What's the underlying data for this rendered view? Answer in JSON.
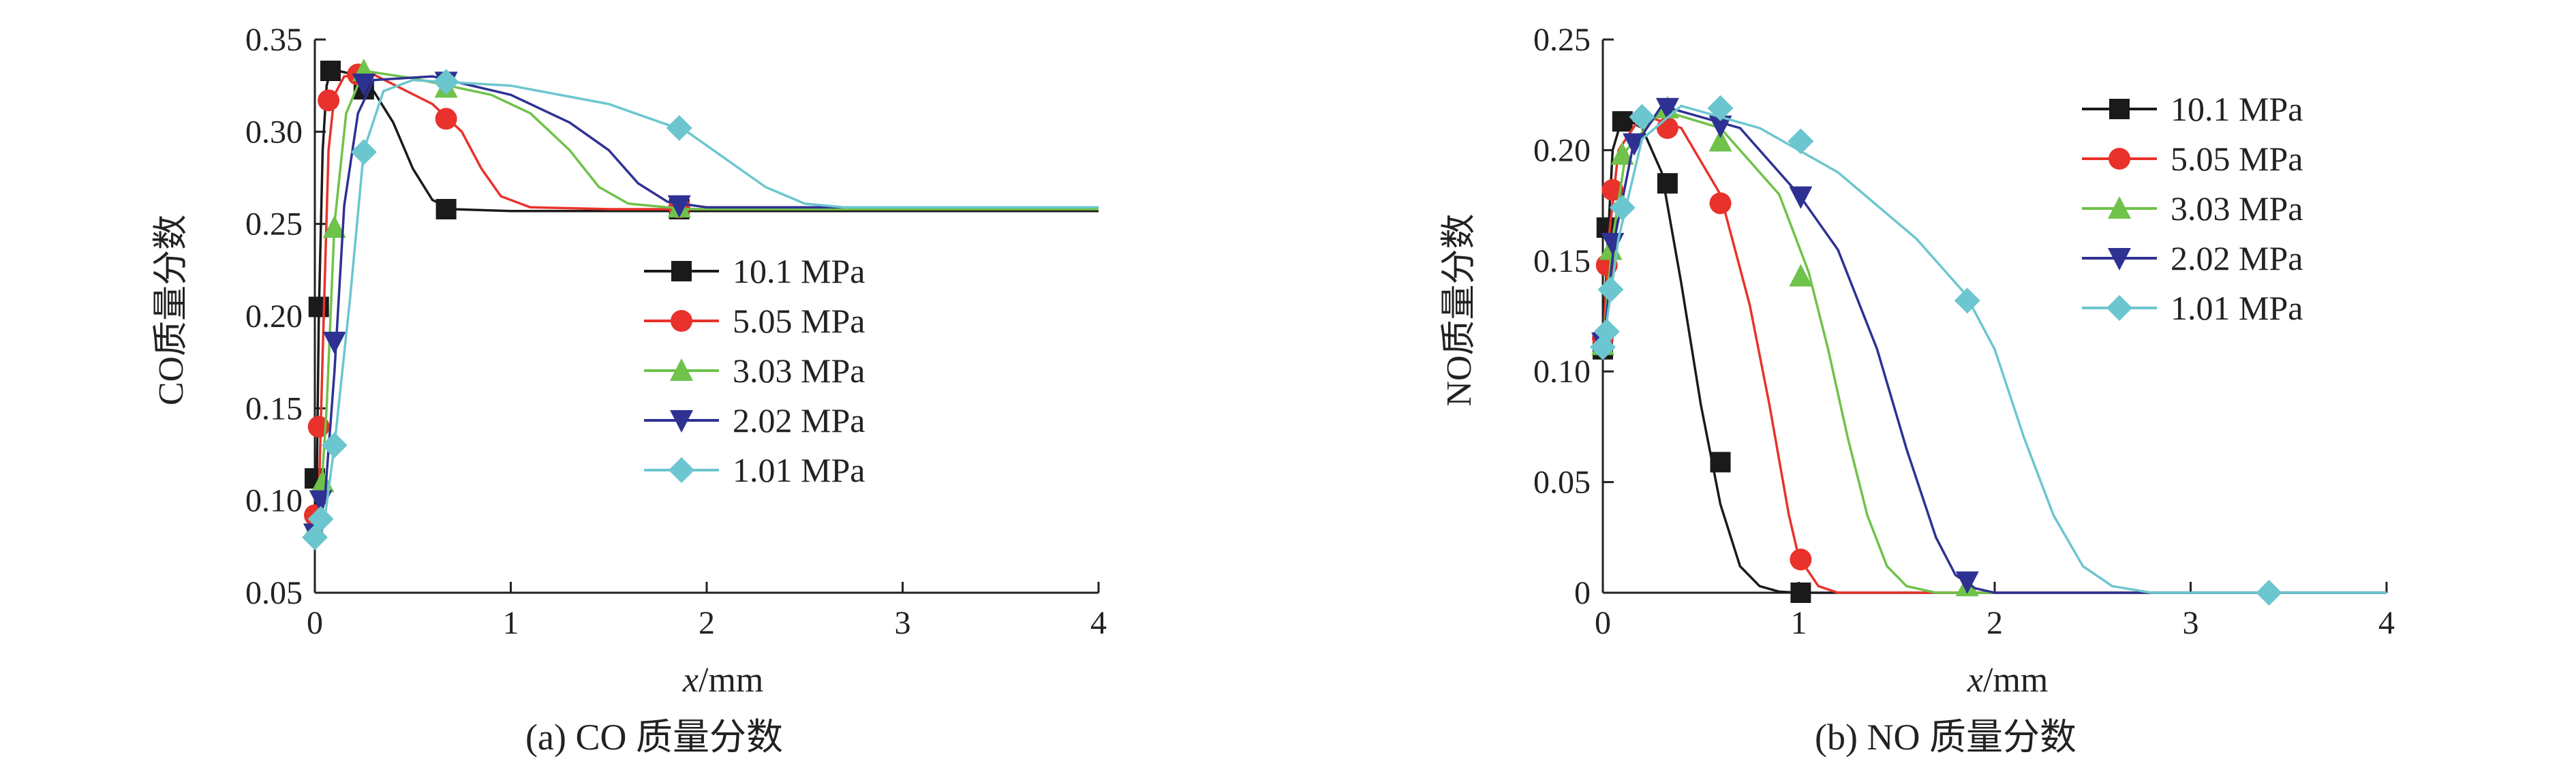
{
  "colors": {
    "10.1 MPa": "#1a1a1a",
    "5.05 MPa": "#e8322b",
    "3.03 MPa": "#6fc24a",
    "2.02 MPa": "#2e3192",
    "1.01 MPa": "#6cc6cf"
  },
  "markers": {
    "10.1 MPa": "square",
    "5.05 MPa": "circle",
    "3.03 MPa": "triangle-up",
    "2.02 MPa": "triangle-down",
    "1.01 MPa": "diamond"
  },
  "chart_data": [
    {
      "type": "line",
      "caption": "(a) CO 质量分数",
      "xlabel_var": "x",
      "xlabel_unit": "/mm",
      "ylabel": "CO质量分数",
      "xlim": [
        0,
        4
      ],
      "ylim": [
        0.05,
        0.35
      ],
      "xticks": [
        "0",
        "1",
        "2",
        "3",
        "4"
      ],
      "yticks": [
        "0.05",
        "0.10",
        "0.15",
        "0.20",
        "0.25",
        "0.30",
        "0.35"
      ],
      "legend_position": "center-right",
      "series": [
        {
          "name": "10.1 MPa",
          "curve": [
            [
              0,
              0.08
            ],
            [
              0.01,
              0.11
            ],
            [
              0.02,
              0.2
            ],
            [
              0.04,
              0.29
            ],
            [
              0.06,
              0.325
            ],
            [
              0.08,
              0.333
            ],
            [
              0.12,
              0.333
            ],
            [
              0.2,
              0.331
            ],
            [
              0.3,
              0.322
            ],
            [
              0.4,
              0.305
            ],
            [
              0.5,
              0.28
            ],
            [
              0.6,
              0.263
            ],
            [
              0.7,
              0.258
            ],
            [
              1.0,
              0.257
            ],
            [
              4.0,
              0.257
            ]
          ],
          "markers": [
            [
              0,
              0.112
            ],
            [
              0.02,
              0.205
            ],
            [
              0.08,
              0.333
            ],
            [
              0.25,
              0.323
            ],
            [
              0.67,
              0.258
            ],
            [
              1.86,
              0.258
            ]
          ]
        },
        {
          "name": "5.05 MPa",
          "curve": [
            [
              0,
              0.08
            ],
            [
              0.02,
              0.1
            ],
            [
              0.04,
              0.18
            ],
            [
              0.07,
              0.29
            ],
            [
              0.1,
              0.32
            ],
            [
              0.15,
              0.33
            ],
            [
              0.3,
              0.331
            ],
            [
              0.6,
              0.315
            ],
            [
              0.75,
              0.3
            ],
            [
              0.85,
              0.28
            ],
            [
              0.95,
              0.265
            ],
            [
              1.1,
              0.259
            ],
            [
              1.5,
              0.258
            ],
            [
              4.0,
              0.258
            ]
          ],
          "markers": [
            [
              0,
              0.092
            ],
            [
              0.02,
              0.14
            ],
            [
              0.07,
              0.317
            ],
            [
              0.22,
              0.331
            ],
            [
              0.67,
              0.307
            ],
            [
              1.86,
              0.259
            ]
          ]
        },
        {
          "name": "3.03 MPa",
          "curve": [
            [
              0,
              0.08
            ],
            [
              0.03,
              0.1
            ],
            [
              0.06,
              0.15
            ],
            [
              0.1,
              0.25
            ],
            [
              0.16,
              0.31
            ],
            [
              0.25,
              0.333
            ],
            [
              0.5,
              0.329
            ],
            [
              0.9,
              0.32
            ],
            [
              1.1,
              0.31
            ],
            [
              1.3,
              0.29
            ],
            [
              1.45,
              0.27
            ],
            [
              1.6,
              0.261
            ],
            [
              1.9,
              0.258
            ],
            [
              4.0,
              0.258
            ]
          ],
          "markers": [
            [
              0,
              0.085
            ],
            [
              0.04,
              0.11
            ],
            [
              0.1,
              0.248
            ],
            [
              0.25,
              0.333
            ],
            [
              0.67,
              0.324
            ],
            [
              1.86,
              0.259
            ]
          ]
        },
        {
          "name": "2.02 MPa",
          "curve": [
            [
              0,
              0.08
            ],
            [
              0.05,
              0.1
            ],
            [
              0.1,
              0.17
            ],
            [
              0.15,
              0.26
            ],
            [
              0.22,
              0.31
            ],
            [
              0.3,
              0.328
            ],
            [
              0.6,
              0.33
            ],
            [
              1.0,
              0.32
            ],
            [
              1.3,
              0.305
            ],
            [
              1.5,
              0.29
            ],
            [
              1.65,
              0.272
            ],
            [
              1.8,
              0.262
            ],
            [
              2.0,
              0.259
            ],
            [
              4.0,
              0.259
            ]
          ],
          "markers": [
            [
              0,
              0.082
            ],
            [
              0.03,
              0.1
            ],
            [
              0.1,
              0.186
            ],
            [
              0.25,
              0.326
            ],
            [
              0.67,
              0.327
            ],
            [
              1.86,
              0.26
            ]
          ]
        },
        {
          "name": "1.01 MPa",
          "curve": [
            [
              0,
              0.08
            ],
            [
              0.05,
              0.09
            ],
            [
              0.1,
              0.13
            ],
            [
              0.18,
              0.21
            ],
            [
              0.25,
              0.29
            ],
            [
              0.35,
              0.322
            ],
            [
              0.5,
              0.328
            ],
            [
              1.0,
              0.325
            ],
            [
              1.5,
              0.315
            ],
            [
              1.9,
              0.3
            ],
            [
              2.1,
              0.285
            ],
            [
              2.3,
              0.27
            ],
            [
              2.5,
              0.261
            ],
            [
              2.7,
              0.259
            ],
            [
              4.0,
              0.259
            ]
          ],
          "markers": [
            [
              0,
              0.08
            ],
            [
              0.03,
              0.09
            ],
            [
              0.1,
              0.13
            ],
            [
              0.25,
              0.289
            ],
            [
              0.67,
              0.327
            ],
            [
              1.86,
              0.302
            ]
          ]
        }
      ]
    },
    {
      "type": "line",
      "caption": "(b) NO 质量分数",
      "xlabel_var": "x",
      "xlabel_unit": "/mm",
      "ylabel": "NO质量分数",
      "xlim": [
        0,
        4
      ],
      "ylim": [
        0,
        0.25
      ],
      "xticks": [
        "0",
        "1",
        "2",
        "3",
        "4"
      ],
      "yticks": [
        "0",
        "0.05",
        "0.10",
        "0.15",
        "0.20",
        "0.25"
      ],
      "legend_position": "top-right",
      "series": [
        {
          "name": "10.1 MPa",
          "curve": [
            [
              0,
              0.11
            ],
            [
              0.02,
              0.15
            ],
            [
              0.05,
              0.2
            ],
            [
              0.1,
              0.215
            ],
            [
              0.2,
              0.21
            ],
            [
              0.3,
              0.19
            ],
            [
              0.4,
              0.14
            ],
            [
              0.5,
              0.085
            ],
            [
              0.6,
              0.04
            ],
            [
              0.7,
              0.012
            ],
            [
              0.8,
              0.003
            ],
            [
              0.9,
              0.0005
            ],
            [
              1.0,
              0.0
            ],
            [
              4.0,
              0.0
            ]
          ],
          "markers": [
            [
              0,
              0.11
            ],
            [
              0.02,
              0.165
            ],
            [
              0.1,
              0.213
            ],
            [
              0.33,
              0.185
            ],
            [
              0.6,
              0.059
            ],
            [
              1.01,
              0.0
            ]
          ]
        },
        {
          "name": "5.05 MPa",
          "curve": [
            [
              0,
              0.11
            ],
            [
              0.03,
              0.16
            ],
            [
              0.08,
              0.2
            ],
            [
              0.2,
              0.216
            ],
            [
              0.4,
              0.21
            ],
            [
              0.6,
              0.18
            ],
            [
              0.75,
              0.13
            ],
            [
              0.85,
              0.085
            ],
            [
              0.95,
              0.035
            ],
            [
              1.0,
              0.016
            ],
            [
              1.1,
              0.003
            ],
            [
              1.2,
              0.0
            ],
            [
              4.0,
              0.0
            ]
          ],
          "markers": [
            [
              0,
              0.115
            ],
            [
              0.02,
              0.148
            ],
            [
              0.05,
              0.182
            ],
            [
              0.33,
              0.21
            ],
            [
              0.6,
              0.176
            ],
            [
              1.01,
              0.015
            ]
          ]
        },
        {
          "name": "3.03 MPa",
          "curve": [
            [
              0,
              0.11
            ],
            [
              0.05,
              0.16
            ],
            [
              0.12,
              0.2
            ],
            [
              0.3,
              0.218
            ],
            [
              0.6,
              0.21
            ],
            [
              0.9,
              0.18
            ],
            [
              1.05,
              0.145
            ],
            [
              1.15,
              0.11
            ],
            [
              1.25,
              0.07
            ],
            [
              1.35,
              0.035
            ],
            [
              1.45,
              0.012
            ],
            [
              1.55,
              0.003
            ],
            [
              1.7,
              0.0
            ],
            [
              4.0,
              0.0
            ]
          ],
          "markers": [
            [
              0,
              0.112
            ],
            [
              0.04,
              0.155
            ],
            [
              0.1,
              0.198
            ],
            [
              0.33,
              0.219
            ],
            [
              0.6,
              0.204
            ],
            [
              1.01,
              0.143
            ],
            [
              1.86,
              0.003
            ]
          ]
        },
        {
          "name": "2.02 MPa",
          "curve": [
            [
              0,
              0.11
            ],
            [
              0.06,
              0.16
            ],
            [
              0.15,
              0.2
            ],
            [
              0.3,
              0.22
            ],
            [
              0.7,
              0.21
            ],
            [
              1.0,
              0.18
            ],
            [
              1.2,
              0.155
            ],
            [
              1.4,
              0.11
            ],
            [
              1.55,
              0.065
            ],
            [
              1.7,
              0.025
            ],
            [
              1.8,
              0.008
            ],
            [
              1.9,
              0.002
            ],
            [
              2.0,
              0.0
            ],
            [
              4.0,
              0.0
            ]
          ],
          "markers": [
            [
              0,
              0.113
            ],
            [
              0.05,
              0.158
            ],
            [
              0.16,
              0.203
            ],
            [
              0.33,
              0.219
            ],
            [
              0.6,
              0.211
            ],
            [
              1.01,
              0.179
            ],
            [
              1.86,
              0.005
            ]
          ]
        },
        {
          "name": "1.01 MPa",
          "curve": [
            [
              0,
              0.11
            ],
            [
              0.08,
              0.16
            ],
            [
              0.2,
              0.205
            ],
            [
              0.4,
              0.22
            ],
            [
              0.8,
              0.21
            ],
            [
              1.2,
              0.19
            ],
            [
              1.6,
              0.16
            ],
            [
              1.85,
              0.135
            ],
            [
              2.0,
              0.11
            ],
            [
              2.15,
              0.07
            ],
            [
              2.3,
              0.035
            ],
            [
              2.45,
              0.012
            ],
            [
              2.6,
              0.003
            ],
            [
              2.8,
              0.0
            ],
            [
              4.0,
              0.0
            ]
          ],
          "markers": [
            [
              0,
              0.111
            ],
            [
              0.02,
              0.118
            ],
            [
              0.04,
              0.137
            ],
            [
              0.1,
              0.174
            ],
            [
              0.2,
              0.215
            ],
            [
              0.6,
              0.219
            ],
            [
              1.01,
              0.204
            ],
            [
              1.86,
              0.132
            ],
            [
              3.4,
              0.0
            ]
          ]
        }
      ]
    }
  ]
}
